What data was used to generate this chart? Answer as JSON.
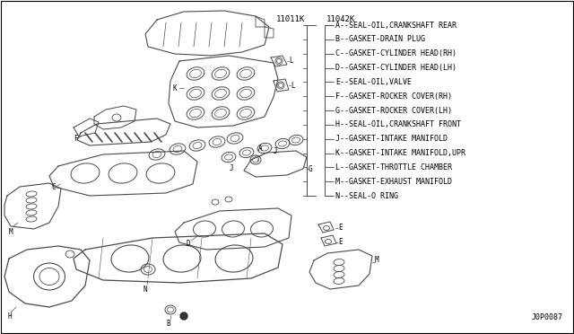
{
  "background_color": "#ffffff",
  "border_color": "#000000",
  "part_numbers": [
    "11011K",
    "11042K"
  ],
  "legend_items": [
    "A--SEAL-OIL,CRANKSHAFT REAR",
    "B--GASKET-DRAIN PLUG",
    "C--GASKET-CYLINDER HEAD(RH)",
    "D--GASKET-CYLINDER HEAD(LH)",
    "E--SEAL-OIL,VALVE",
    "F--GASKET-ROCKER COVER(RH)",
    "G--GASKET-ROCKER COVER(LH)",
    "H--SEAL-OIL,CRANKSHAFT FRONT",
    "J--GASKET-INTAKE MANIFOLD",
    "K--GASKET-INTAKE MANIFOLD,UPR",
    "L--GASKET-THROTTLE CHAMBER",
    "M--GASKET-EXHAUST MANIFOLD",
    "N--SEAL-O RING"
  ],
  "diagram_code": "J0P0087",
  "line_color": "#4a4a4a",
  "text_color": "#000000",
  "font_size_legend": 6.0,
  "font_size_part": 6.5,
  "font_size_code": 6.0,
  "font_size_label": 5.5
}
